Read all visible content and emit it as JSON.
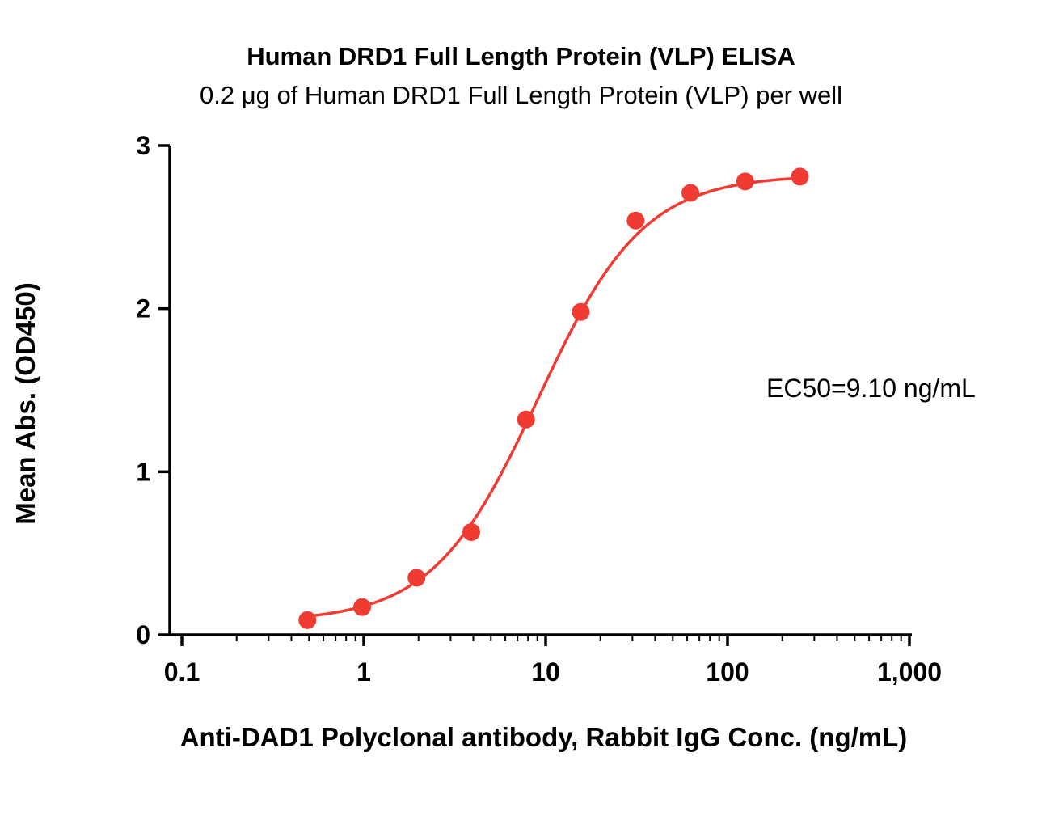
{
  "title": "Human DRD1 Full Length Protein (VLP) ELISA",
  "subtitle": "0.2 μg of Human DRD1 Full Length Protein (VLP) per well",
  "annotation": "EC50=9.10 ng/mL",
  "chart_data": {
    "type": "scatter",
    "title": "Human DRD1 Full Length Protein (VLP) ELISA",
    "subtitle": "0.2 μg of Human DRD1 Full Length Protein (VLP) per well",
    "xlabel": "Anti-DAD1 Polyclonal antibody, Rabbit IgG Conc. (ng/mL)",
    "ylabel": "Mean Abs. (OD450)",
    "xscale": "log",
    "xlim": [
      0.1,
      1000
    ],
    "ylim": [
      0,
      3
    ],
    "xticks": [
      0.1,
      1,
      10,
      100,
      1000
    ],
    "xtick_labels": [
      "0.1",
      "1",
      "10",
      "100",
      "1,000"
    ],
    "yticks": [
      0,
      1,
      2,
      3
    ],
    "ytick_labels": [
      "0",
      "1",
      "2",
      "3"
    ],
    "grid": false,
    "legend": "none",
    "x": [
      0.49,
      0.98,
      1.95,
      3.9,
      7.8,
      15.6,
      31.25,
      62.5,
      125,
      250
    ],
    "y": [
      0.09,
      0.17,
      0.35,
      0.63,
      1.32,
      1.98,
      2.54,
      2.71,
      2.78,
      2.81
    ],
    "fit": {
      "model": "4PL",
      "bottom": 0.08,
      "top": 2.82,
      "ec50": 9.1,
      "hill": 1.5,
      "curve_x_range": [
        0.49,
        260
      ],
      "ec50_label": "EC50=9.10 ng/mL"
    },
    "point_color": "#F03B33",
    "line_color": "#F03B33",
    "axis_color": "#000000"
  }
}
